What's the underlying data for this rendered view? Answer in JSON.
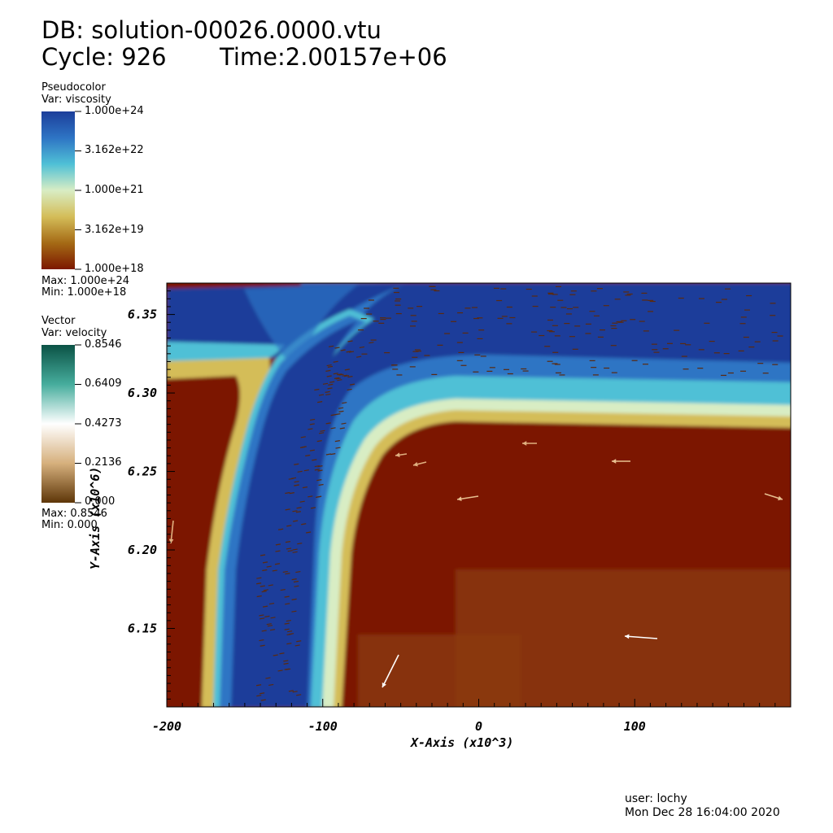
{
  "header": {
    "db_line": "DB: solution-00026.0000.vtu",
    "cycle_label": "Cycle: 926",
    "time_label": "Time:2.00157e+06"
  },
  "legends": {
    "pseudocolor": {
      "title": "Pseudocolor",
      "var": "Var: viscosity",
      "ticks": [
        "1.000e+24",
        "3.162e+22",
        "1.000e+21",
        "3.162e+19",
        "1.000e+18"
      ],
      "max": "Max:  1.000e+24",
      "min": "Min:  1.000e+18",
      "colors": [
        "#1c3e9a",
        "#2e74c4",
        "#4fc0d6",
        "#d8edc4",
        "#d4bd59",
        "#a56a15",
        "#7c1800"
      ]
    },
    "vector": {
      "title": "Vector",
      "var": "Var: velocity",
      "ticks": [
        "0.8546",
        "0.6409",
        "0.4273",
        "0.2136",
        "0.000"
      ],
      "max": "Max:  0.8546",
      "min": "Min:  0.000",
      "colors": [
        "#0b5245",
        "#46ad9d",
        "#ffffff",
        "#d6b07d",
        "#5e3608"
      ]
    }
  },
  "chart_data": {
    "type": "heatmap",
    "xlabel": "X-Axis (x10^3)",
    "ylabel": "Y-Axis (x10^6)",
    "xlim": [
      -200,
      200
    ],
    "ylim": [
      6.1,
      6.37
    ],
    "x_ticks": [
      "-200",
      "-100",
      "0",
      "100"
    ],
    "y_ticks": [
      "6.35",
      "6.30",
      "6.25",
      "6.20",
      "6.15"
    ],
    "x_tick_values": [
      -200,
      -100,
      0,
      100
    ],
    "y_tick_values": [
      6.35,
      6.3,
      6.25,
      6.2,
      6.15
    ],
    "field": "viscosity",
    "colors": {
      "high": "#1c3e9a",
      "mid_high": "#2e74c4",
      "mid": "#4fc0d6",
      "light": "#d8edc4",
      "low_mid": "#d4bd59",
      "low": "#7c1800"
    }
  },
  "footer": {
    "user": "user: lochy",
    "date": "Mon Dec 28 16:04:00 2020"
  }
}
